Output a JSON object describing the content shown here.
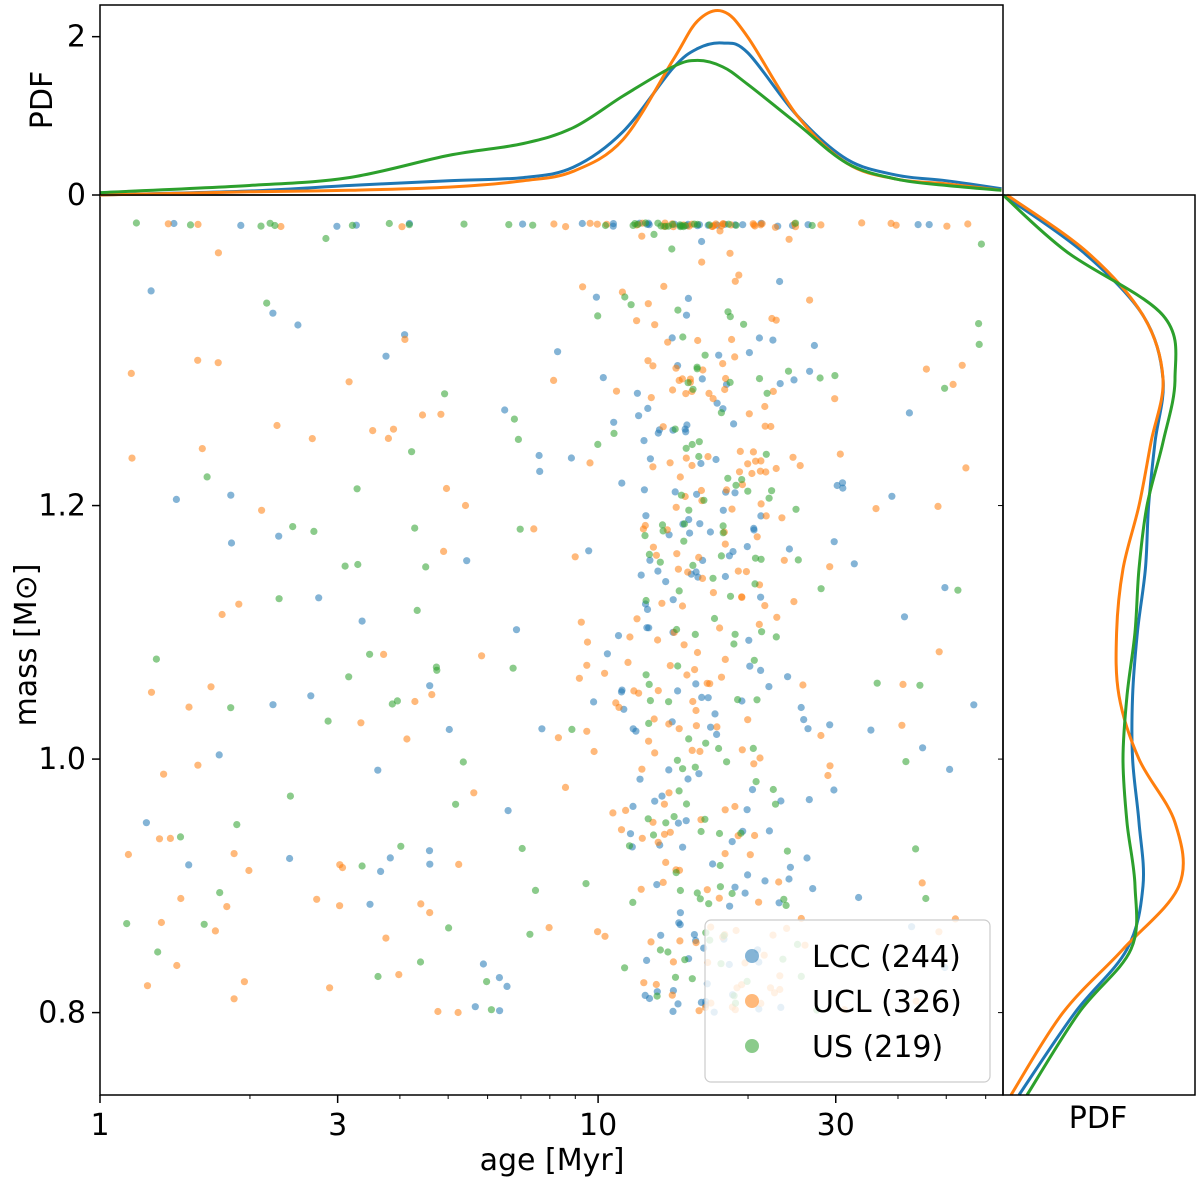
{
  "chart_data": {
    "type": "scatter",
    "layout": "joint plot with marginal density curves",
    "xlabel": "age [Myr]",
    "ylabel": "mass [M⊙]",
    "x_scale": "log",
    "xlim": [
      1,
      65
    ],
    "ylim": [
      0.735,
      1.445
    ],
    "x_ticks": [
      1,
      3,
      10,
      30
    ],
    "x_tick_labels": [
      "1",
      "3",
      "10",
      "30"
    ],
    "y_ticks": [
      0.8,
      1.0,
      1.2
    ],
    "y_tick_labels": [
      "0.8",
      "1.0",
      "1.2"
    ],
    "series": [
      {
        "name": "LCC",
        "label": "LCC (244)",
        "count": 244,
        "color": "#1f77b4"
      },
      {
        "name": "UCL",
        "label": "UCL (326)",
        "count": 326,
        "color": "#ff7f0e"
      },
      {
        "name": "US",
        "label": "US (219)",
        "count": 219,
        "color": "#2ca02c"
      }
    ],
    "legend": {
      "location": "lower-right"
    },
    "marginal_x": {
      "ylabel": "PDF",
      "ylim": [
        0,
        2.4
      ],
      "y_ticks": [
        0,
        2
      ],
      "y_tick_labels": [
        "0",
        "2"
      ],
      "curves": [
        {
          "name": "LCC",
          "log_age": [
            0.0,
            0.3,
            0.5,
            0.7,
            0.85,
            0.95,
            1.05,
            1.15,
            1.2,
            1.25,
            1.3,
            1.4,
            1.5,
            1.6,
            1.7,
            1.81
          ],
          "pdf": [
            0.0,
            0.05,
            0.12,
            0.18,
            0.22,
            0.35,
            0.8,
            1.6,
            1.85,
            1.92,
            1.8,
            1.0,
            0.45,
            0.25,
            0.18,
            0.08
          ]
        },
        {
          "name": "UCL",
          "log_age": [
            0.0,
            0.3,
            0.5,
            0.7,
            0.85,
            0.95,
            1.05,
            1.15,
            1.2,
            1.25,
            1.3,
            1.4,
            1.5,
            1.6,
            1.7,
            1.81
          ],
          "pdf": [
            0.0,
            0.04,
            0.06,
            0.1,
            0.18,
            0.3,
            0.7,
            1.7,
            2.2,
            2.32,
            2.0,
            1.0,
            0.4,
            0.2,
            0.14,
            0.06
          ]
        },
        {
          "name": "US",
          "log_age": [
            0.0,
            0.3,
            0.5,
            0.7,
            0.85,
            0.95,
            1.05,
            1.15,
            1.2,
            1.25,
            1.3,
            1.4,
            1.5,
            1.6,
            1.7,
            1.81
          ],
          "pdf": [
            0.03,
            0.12,
            0.22,
            0.5,
            0.65,
            0.85,
            1.25,
            1.62,
            1.7,
            1.62,
            1.4,
            0.9,
            0.4,
            0.2,
            0.12,
            0.06
          ]
        }
      ]
    },
    "marginal_y": {
      "xlabel": "PDF",
      "curves": [
        {
          "name": "LCC",
          "mass": [
            0.735,
            0.8,
            0.85,
            0.9,
            0.95,
            1.0,
            1.05,
            1.1,
            1.15,
            1.2,
            1.25,
            1.3,
            1.35,
            1.4,
            1.445
          ],
          "pdf": [
            0.2,
            0.9,
            1.55,
            1.75,
            1.7,
            1.62,
            1.62,
            1.68,
            1.78,
            1.82,
            1.9,
            2.0,
            1.75,
            1.0,
            0.0
          ]
        },
        {
          "name": "UCL",
          "mass": [
            0.735,
            0.8,
            0.85,
            0.9,
            0.95,
            1.0,
            1.05,
            1.1,
            1.15,
            1.2,
            1.25,
            1.3,
            1.35,
            1.4,
            1.445
          ],
          "pdf": [
            0.1,
            0.75,
            1.5,
            2.2,
            2.15,
            1.7,
            1.45,
            1.42,
            1.5,
            1.7,
            1.85,
            2.0,
            1.75,
            1.05,
            0.05
          ]
        },
        {
          "name": "US",
          "mass": [
            0.735,
            0.8,
            0.85,
            0.9,
            0.95,
            1.0,
            1.05,
            1.1,
            1.15,
            1.2,
            1.25,
            1.3,
            1.35,
            1.4,
            1.445
          ],
          "pdf": [
            0.3,
            0.95,
            1.6,
            1.65,
            1.55,
            1.5,
            1.55,
            1.65,
            1.7,
            1.8,
            2.0,
            2.15,
            2.0,
            0.8,
            0.0
          ]
        }
      ]
    }
  }
}
